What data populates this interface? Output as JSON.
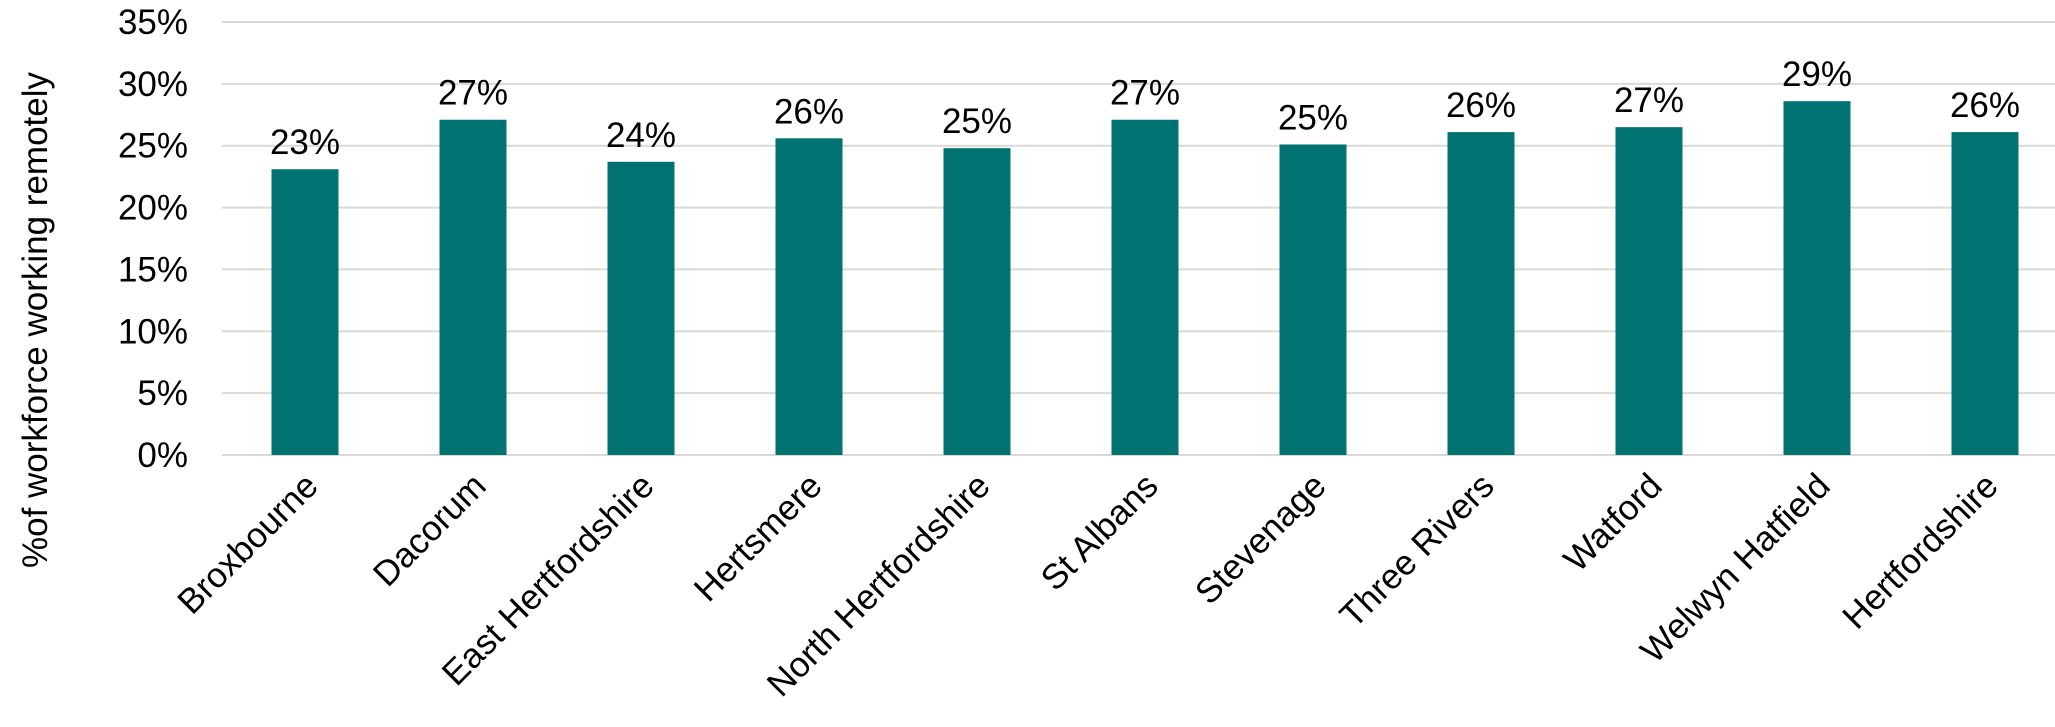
{
  "chart_data": {
    "type": "bar",
    "categories": [
      "Broxbourne",
      "Dacorum",
      "East Hertfordshire",
      "Hertsmere",
      "North Hertfordshire",
      "St Albans",
      "Stevenage",
      "Three Rivers",
      "Watford",
      "Welwyn Hatfield",
      "Hertfordshire"
    ],
    "values": [
      23.1,
      27.1,
      23.7,
      25.6,
      24.8,
      27.1,
      25.1,
      26.1,
      26.5,
      28.6,
      26.1
    ],
    "data_labels": [
      "23%",
      "27%",
      "24%",
      "26%",
      "25%",
      "27%",
      "25%",
      "26%",
      "27%",
      "29%",
      "26%"
    ],
    "title": "",
    "xlabel": "",
    "ylabel": "%of workforce working remotely",
    "ylim": [
      0,
      35
    ],
    "yticks": [
      "0%",
      "5%",
      "10%",
      "15%",
      "20%",
      "25%",
      "30%",
      "35%"
    ],
    "ytick_values": [
      0,
      5,
      10,
      15,
      20,
      25,
      30,
      35
    ],
    "grid": true,
    "legend": "none",
    "bar_color": "#007272",
    "grid_color": "#d9d9d9"
  }
}
